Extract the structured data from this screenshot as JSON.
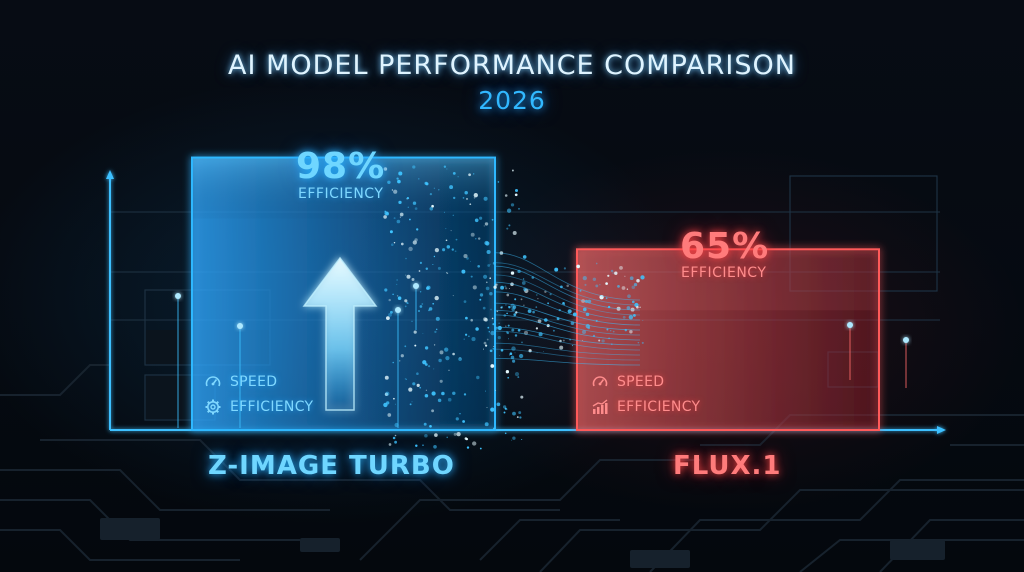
{
  "title": "AI MODEL PERFORMANCE COMPARISON",
  "subtitle": "2026",
  "colors": {
    "primary": "#2fb8ff",
    "secondary": "#ff5a5a",
    "background": "#05090f"
  },
  "chart_data": {
    "type": "bar",
    "title": "AI MODEL PERFORMANCE COMPARISON",
    "subtitle": "2026",
    "categories": [
      "Z-IMAGE TURBO",
      "FLUX.1"
    ],
    "series": [
      {
        "values": [
          98,
          65
        ]
      }
    ],
    "value_labels": [
      "98%",
      "65%"
    ],
    "value_caption": "EFFICIENCY",
    "ylim": [
      0,
      100
    ],
    "xlabel": "",
    "ylabel": "",
    "grid": true,
    "bar_colors": [
      "#2fb8ff",
      "#ff5a5a"
    ],
    "metrics": [
      {
        "items": [
          {
            "label": "SPEED",
            "icon": "speedometer-icon"
          },
          {
            "label": "EFFICIENCY",
            "icon": "gear-icon"
          }
        ]
      },
      {
        "items": [
          {
            "label": "SPEED",
            "icon": "speedometer-icon"
          },
          {
            "label": "EFFICIENCY",
            "icon": "growth-chart-icon"
          }
        ]
      }
    ],
    "decorations": [
      "up-arrow-icon"
    ]
  }
}
